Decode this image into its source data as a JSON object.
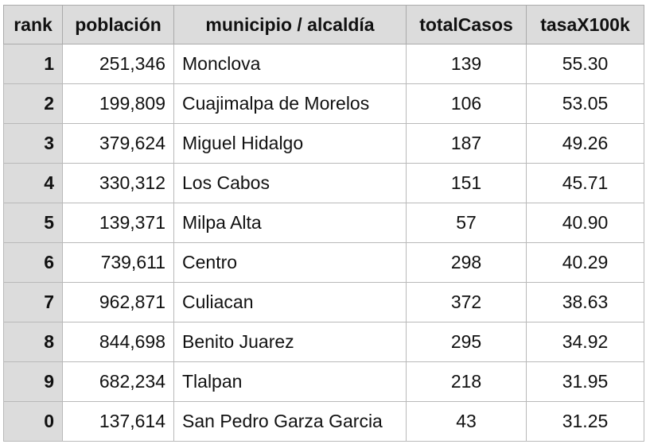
{
  "table": {
    "columns": [
      "rank",
      "población",
      "municipio / alcaldía",
      "totalCasos",
      "tasaX100k"
    ],
    "rows": [
      {
        "rank": "1",
        "poblacion": "251,346",
        "municipio": "Monclova",
        "totalCasos": "139",
        "tasa": "55.30"
      },
      {
        "rank": "2",
        "poblacion": "199,809",
        "municipio": "Cuajimalpa de Morelos",
        "totalCasos": "106",
        "tasa": "53.05"
      },
      {
        "rank": "3",
        "poblacion": "379,624",
        "municipio": "Miguel Hidalgo",
        "totalCasos": "187",
        "tasa": "49.26"
      },
      {
        "rank": "4",
        "poblacion": "330,312",
        "municipio": "Los Cabos",
        "totalCasos": "151",
        "tasa": "45.71"
      },
      {
        "rank": "5",
        "poblacion": "139,371",
        "municipio": "Milpa Alta",
        "totalCasos": "57",
        "tasa": "40.90"
      },
      {
        "rank": "6",
        "poblacion": "739,611",
        "municipio": "Centro",
        "totalCasos": "298",
        "tasa": "40.29"
      },
      {
        "rank": "7",
        "poblacion": "962,871",
        "municipio": "Culiacan",
        "totalCasos": "372",
        "tasa": "38.63"
      },
      {
        "rank": "8",
        "poblacion": "844,698",
        "municipio": "Benito Juarez",
        "totalCasos": "295",
        "tasa": "34.92"
      },
      {
        "rank": "9",
        "poblacion": "682,234",
        "municipio": "Tlalpan",
        "totalCasos": "218",
        "tasa": "31.95"
      },
      {
        "rank": "0",
        "poblacion": "137,614",
        "municipio": "San Pedro Garza Garcia",
        "totalCasos": "43",
        "tasa": "31.25"
      }
    ]
  },
  "colors": {
    "header_bg": "#dcdcdc",
    "grid_line": "#b9b9b9",
    "cell_bg": "#ffffff"
  }
}
